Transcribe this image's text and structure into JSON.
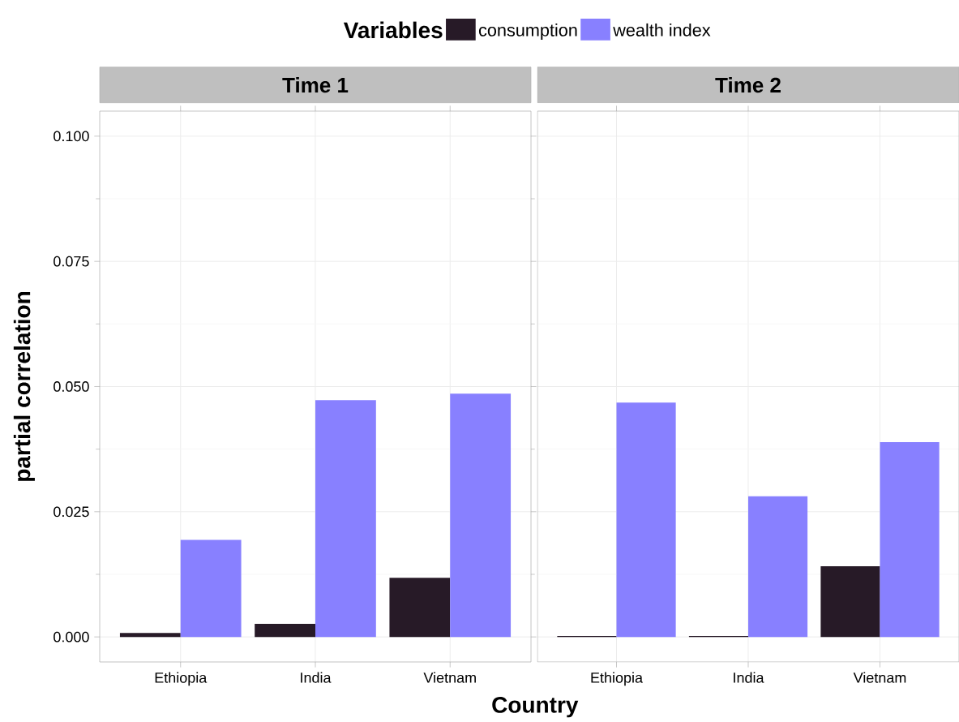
{
  "chart_data": [
    {
      "type": "bar",
      "title": "Time 1",
      "xlabel": "Country",
      "ylabel": "partial correlation",
      "legend_title": "Variables",
      "legend": "top",
      "grid": true,
      "categories": [
        "Ethiopia",
        "India",
        "Vietnam"
      ],
      "series": [
        {
          "name": "consumption",
          "color": "#271a27",
          "values": [
            0.0008,
            0.0026,
            0.0118
          ]
        },
        {
          "name": "wealth index",
          "color": "#8880ff",
          "values": [
            0.0194,
            0.0473,
            0.0486
          ]
        }
      ],
      "ylim": [
        -0.005,
        0.105
      ],
      "yticks": [
        {
          "value": 0,
          "label": "0.000"
        },
        {
          "value": 0.025,
          "label": "0.025"
        },
        {
          "value": 0.05,
          "label": "0.050"
        },
        {
          "value": 0.075,
          "label": "0.075"
        },
        {
          "value": 0.1,
          "label": "0.100"
        }
      ]
    },
    {
      "type": "bar",
      "title": "Time 2",
      "grid": true,
      "tick_labels": "x",
      "categories": [
        "Ethiopia",
        "India",
        "Vietnam"
      ],
      "series": [
        {
          "color": "#271a27",
          "values": [
            0.0002,
            0.0002,
            0.0141
          ]
        },
        {
          "color": "#8880ff",
          "values": [
            0.0468,
            0.0281,
            0.0389
          ]
        }
      ],
      "ylim": [
        -0.005,
        0.105
      ],
      "yticks": [
        0,
        0.025,
        0.05,
        0.075,
        0.1
      ]
    }
  ]
}
